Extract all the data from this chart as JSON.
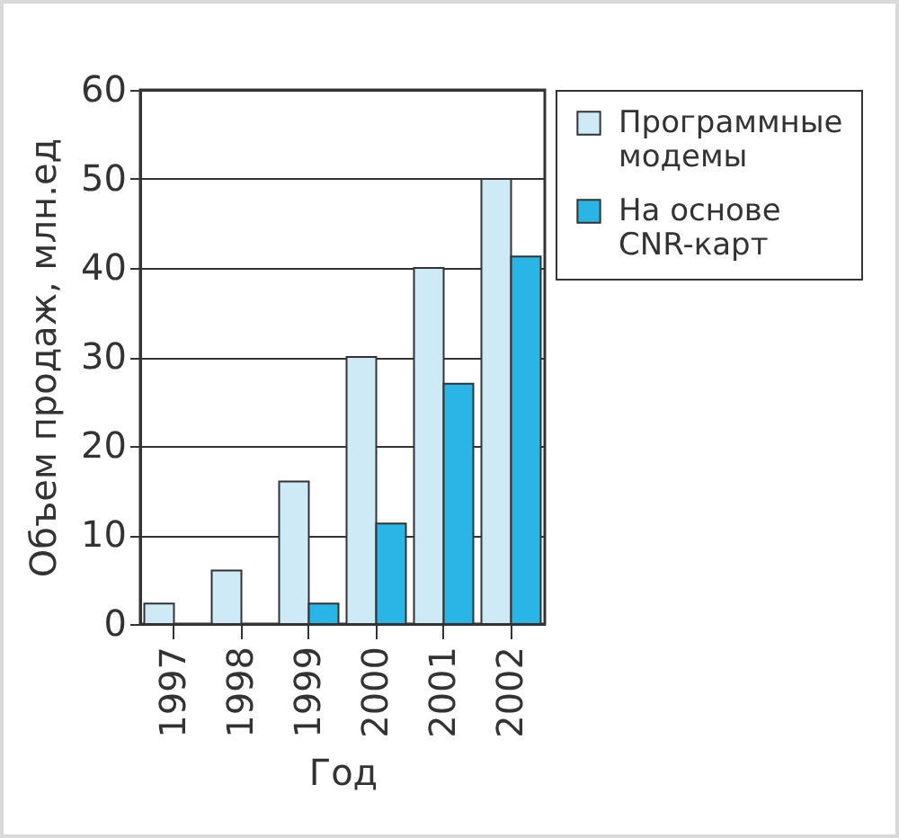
{
  "chart_data": {
    "type": "bar",
    "xlabel": "Год",
    "ylabel": "Объем продаж, млн.ед",
    "categories": [
      "1997",
      "1998",
      "1999",
      "2000",
      "2001",
      "2002"
    ],
    "series": [
      {
        "name": "Программные модемы",
        "color": "#cdeaf6",
        "values": [
          2.3,
          6,
          16,
          30,
          40,
          50
        ]
      },
      {
        "name": "На основе CNR-карт",
        "color": "#29b6e6",
        "values": [
          null,
          null,
          2.3,
          11.3,
          27,
          41.3
        ]
      }
    ],
    "ylim": [
      0,
      60
    ],
    "yticks": [
      0,
      10,
      20,
      30,
      40,
      50,
      60
    ],
    "grid": "y",
    "legend": "top right"
  }
}
